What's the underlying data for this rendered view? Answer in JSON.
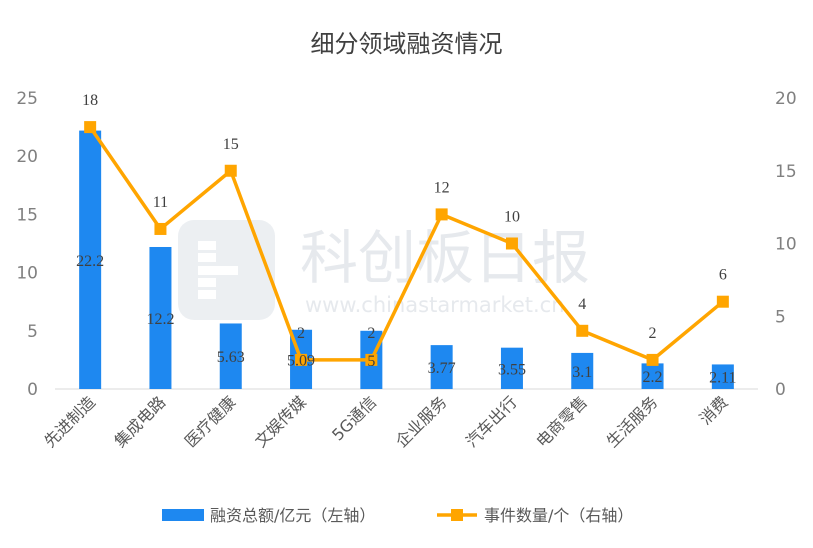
{
  "chart_data": {
    "type": "bar+line",
    "title": "细分领域融资情况",
    "categories": [
      "先进制造",
      "集成电路",
      "医疗健康",
      "文娱传媒",
      "5G通信",
      "企业服务",
      "汽车出行",
      "电商零售",
      "生活服务",
      "消费"
    ],
    "series": [
      {
        "name": "融资总额/亿元（左轴）",
        "type": "bar",
        "axis": "left",
        "color": "#1E88F0",
        "values": [
          22.2,
          12.2,
          5.63,
          5.09,
          5,
          3.77,
          3.55,
          3.1,
          2.2,
          2.11
        ],
        "labels": [
          "22.2",
          "12.2",
          "5.63",
          "5.09",
          "5",
          "3.77",
          "3.55",
          "3.1",
          "2.2",
          "2.11"
        ]
      },
      {
        "name": "事件数量/个（右轴）",
        "type": "line",
        "axis": "right",
        "color": "#FFA500",
        "values": [
          18,
          11,
          15,
          2,
          2,
          12,
          10,
          4,
          2,
          6
        ],
        "labels": [
          "18",
          "11",
          "15",
          "2",
          "2",
          "12",
          "10",
          "4",
          "2",
          "6"
        ]
      }
    ],
    "left_axis": {
      "range": [
        0,
        25
      ],
      "ticks": [
        "0",
        "5",
        "10",
        "15",
        "20",
        "25"
      ]
    },
    "right_axis": {
      "range": [
        0,
        20
      ],
      "ticks": [
        "0",
        "5",
        "10",
        "15",
        "20"
      ]
    },
    "grid": false,
    "legend": "bottom"
  },
  "watermark": {
    "text": "科创板日报",
    "url": "www.chinastarmarket.cn"
  }
}
